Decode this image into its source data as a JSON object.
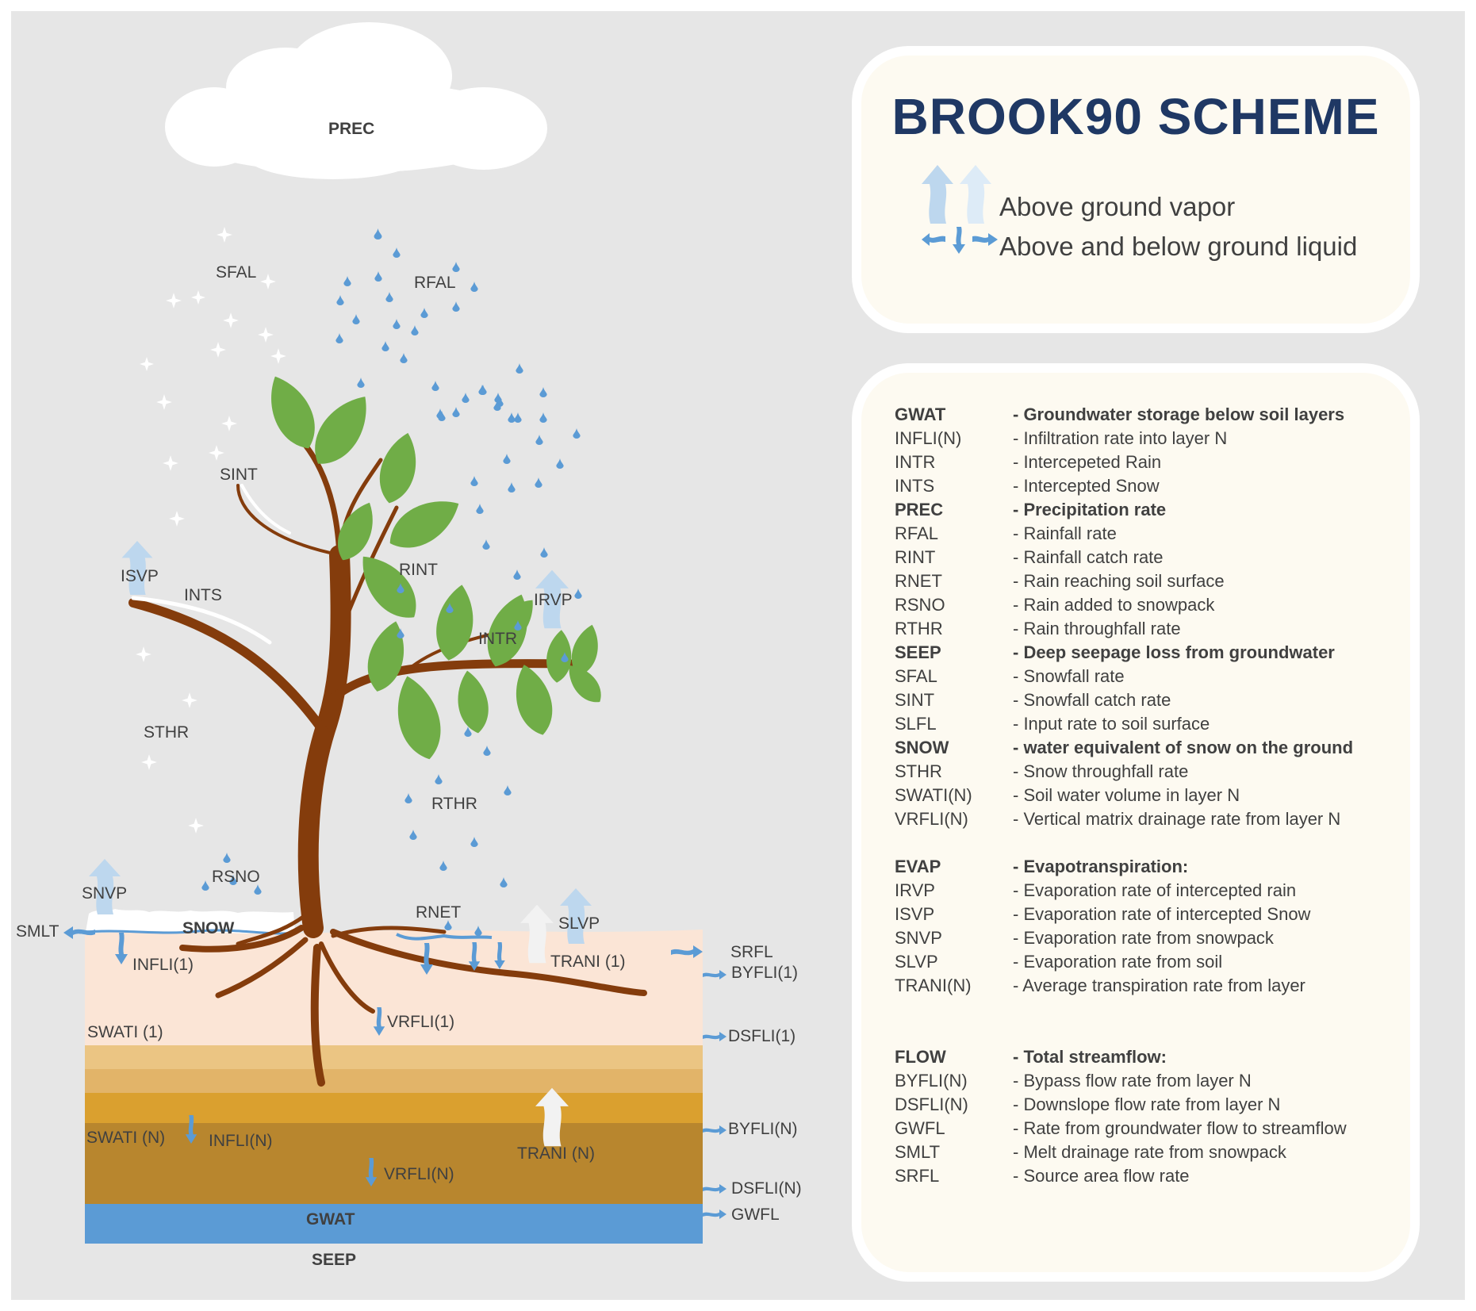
{
  "title": "BROOK90 SCHEME",
  "legend": {
    "vapor": "Above ground vapor",
    "liquid": "Above and below ground liquid",
    "vapor_color": "#bdd7ee",
    "liquid_color": "#5b9bd5"
  },
  "colors": {
    "background": "#e6e6e6",
    "panel": "#fdfaf1",
    "title": "#1f3864",
    "groundwater": "#5b9bd5",
    "trunk": "#843c0c",
    "leaf": "#70ad47",
    "topsoil": "#fbe5d6"
  },
  "labels": {
    "prec": "PREC",
    "sfal": "SFAL",
    "rfal": "RFAL",
    "sint": "SINT",
    "rint": "RINT",
    "isvp": "ISVP",
    "ints": "INTS",
    "irvp": "IRVP",
    "intr": "INTR",
    "sthr": "STHR",
    "rthr": "RTHR",
    "rsno": "RSNO",
    "snvp": "SNVP",
    "rnet": "RNET",
    "slvp": "SLVP",
    "smlt": "SMLT",
    "snow": "SNOW",
    "srfl": "SRFL",
    "infli1": "INFLI(1)",
    "trani1": "TRANI (1)",
    "byfli1": "BYFLI(1)",
    "vrfli1": "VRFLI(1)",
    "swati1": "SWATI (1)",
    "dsfli1": "DSFLI(1)",
    "swatin": "SWATI (N)",
    "inflin": "INFLI(N)",
    "tranin": "TRANI (N)",
    "byflin": "BYFLI(N)",
    "vrflin": "VRFLI(N)",
    "dsflin": "DSFLI(N)",
    "gwat": "GWAT",
    "gwfl": "GWFL",
    "seep": "SEEP"
  },
  "glossary": [
    {
      "code": "GWAT",
      "desc": "- Groundwater storage below soil layers",
      "bold": true
    },
    {
      "code": "INFLI(N)",
      "desc": "- Infiltration rate into layer N",
      "bold": false
    },
    {
      "code": "INTR",
      "desc": "- Intercepeted Rain",
      "bold": false
    },
    {
      "code": "INTS",
      "desc": "- Intercepted Snow",
      "bold": false
    },
    {
      "code": "PREC",
      "desc": "- Precipitation rate",
      "bold": true
    },
    {
      "code": "RFAL",
      "desc": "- Rainfall rate",
      "bold": false
    },
    {
      "code": "RINT",
      "desc": "- Rainfall catch rate",
      "bold": false
    },
    {
      "code": "RNET",
      "desc": "- Rain reaching soil surface",
      "bold": false
    },
    {
      "code": "RSNO",
      "desc": "- Rain added to snowpack",
      "bold": false
    },
    {
      "code": "RTHR",
      "desc": "- Rain throughfall rate",
      "bold": false
    },
    {
      "code": "SEEP",
      "desc": "- Deep seepage loss from groundwater",
      "bold": true
    },
    {
      "code": "SFAL",
      "desc": "- Snowfall rate",
      "bold": false
    },
    {
      "code": "SINT",
      "desc": "- Snowfall catch rate",
      "bold": false
    },
    {
      "code": "SLFL",
      "desc": "- Input rate to soil surface",
      "bold": false
    },
    {
      "code": "SNOW",
      "desc": "- water equivalent of snow on the ground",
      "bold": true
    },
    {
      "code": "STHR",
      "desc": "- Snow throughfall rate",
      "bold": false
    },
    {
      "code": "SWATI(N)",
      "desc": "- Soil water volume in layer N",
      "bold": false
    },
    {
      "code": "VRFLI(N)",
      "desc": "- Vertical matrix drainage rate from layer N",
      "bold": false
    },
    {
      "code": "EVAP",
      "desc": "- Evapotranspiration:",
      "bold": true
    },
    {
      "code": "IRVP",
      "desc": "- Evaporation rate of intercepted rain",
      "bold": false
    },
    {
      "code": "ISVP",
      "desc": "- Evaporation rate of intercepted Snow",
      "bold": false
    },
    {
      "code": "SNVP",
      "desc": "- Evaporation rate from snowpack",
      "bold": false
    },
    {
      "code": "SLVP",
      "desc": "- Evaporation rate from soil",
      "bold": false
    },
    {
      "code": "TRANI(N)",
      "desc": "- Average transpiration rate from layer",
      "bold": false
    },
    {
      "code": "FLOW",
      "desc": "- Total streamflow:",
      "bold": true
    },
    {
      "code": "BYFLI(N)",
      "desc": "- Bypass flow rate from layer N",
      "bold": false
    },
    {
      "code": "DSFLI(N)",
      "desc": "- Downslope flow rate from layer N",
      "bold": false
    },
    {
      "code": "GWFL",
      "desc": "- Rate from groundwater flow to streamflow",
      "bold": false
    },
    {
      "code": "SMLT",
      "desc": "- Melt drainage rate from snowpack",
      "bold": false
    },
    {
      "code": "SRFL",
      "desc": "- Source area flow rate",
      "bold": false
    }
  ]
}
